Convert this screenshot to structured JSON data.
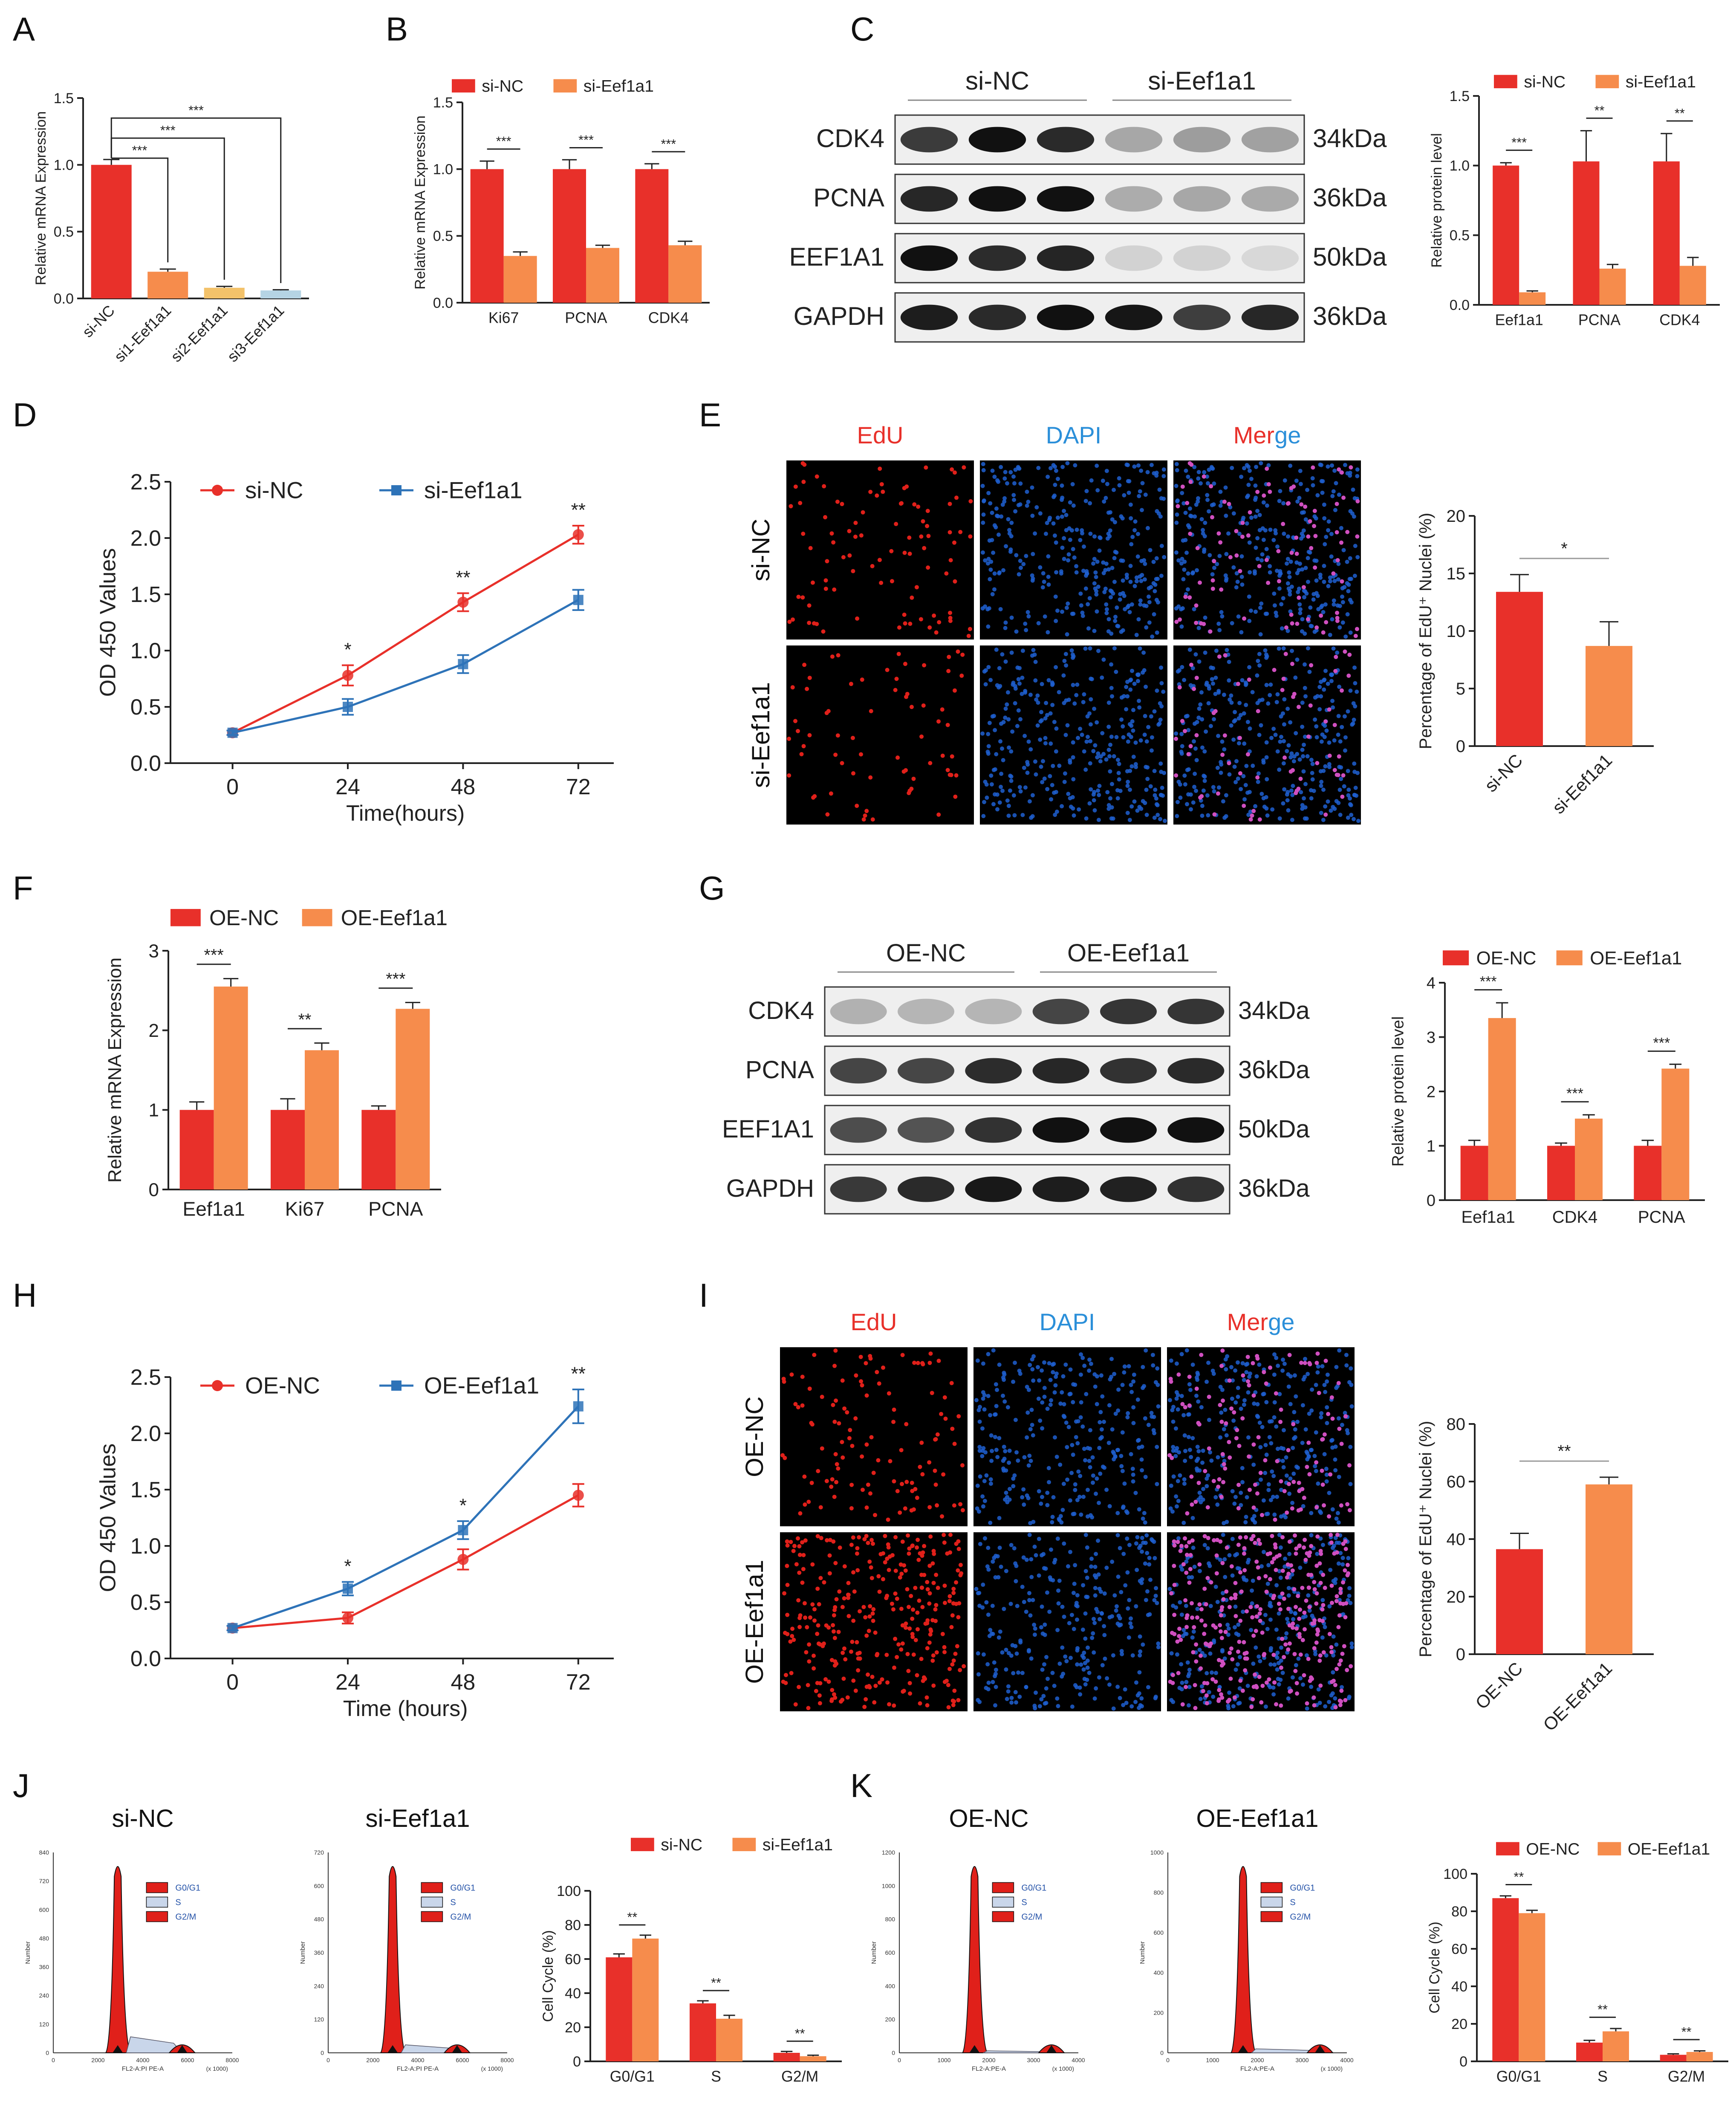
{
  "colors": {
    "red": "#e8302a",
    "orange": "#f68c4c",
    "yellow": "#f3c26a",
    "lightblue": "#b5d4e4",
    "blue": "#2e73b8",
    "edu_red": "#e8302a",
    "dapi_blue": "#2b8fd9"
  },
  "panel_letters": [
    "A",
    "B",
    "C",
    "D",
    "E",
    "F",
    "G",
    "H",
    "I",
    "J",
    "K"
  ],
  "chart_data": [
    {
      "id": "A",
      "type": "bar",
      "ylabel": "Relative mRNA Expression",
      "ylim": [
        0,
        1.5
      ],
      "yticks": [
        "0.0",
        "0.5",
        "1.0",
        "1.5"
      ],
      "categories": [
        "si-NC",
        "si1-Eef1a1",
        "si2-Eef1a1",
        "si3-Eef1a1"
      ],
      "values": [
        1.0,
        0.2,
        0.08,
        0.06
      ],
      "errors": [
        0.04,
        0.02,
        0.01,
        0.005
      ],
      "sig": [
        "***",
        "***",
        "***"
      ]
    },
    {
      "id": "B",
      "type": "bar",
      "ylabel": "Relative mRNA Expression",
      "ylim": [
        0,
        1.5
      ],
      "yticks": [
        "0.0",
        "0.5",
        "1.0",
        "1.5"
      ],
      "categories": [
        "Ki67",
        "PCNA",
        "CDK4"
      ],
      "series": [
        {
          "name": "si-NC",
          "values": [
            1.0,
            1.0,
            1.0
          ],
          "errors": [
            0.06,
            0.07,
            0.04
          ]
        },
        {
          "name": "si-Eef1a1",
          "values": [
            0.35,
            0.41,
            0.43
          ],
          "errors": [
            0.03,
            0.02,
            0.03
          ]
        }
      ],
      "sig": [
        "***",
        "***",
        "***"
      ]
    },
    {
      "id": "C",
      "type": "bar",
      "ylabel": "Relative protein level",
      "ylim": [
        0,
        1.5
      ],
      "yticks": [
        "0.0",
        "0.5",
        "1.0",
        "1.5"
      ],
      "categories": [
        "Eef1a1",
        "PCNA",
        "CDK4"
      ],
      "series": [
        {
          "name": "si-NC",
          "values": [
            1.0,
            1.03,
            1.03
          ],
          "errors": [
            0.02,
            0.22,
            0.2
          ]
        },
        {
          "name": "si-Eef1a1",
          "values": [
            0.09,
            0.26,
            0.28
          ],
          "errors": [
            0.01,
            0.03,
            0.06
          ]
        }
      ],
      "sig": [
        "***",
        "**",
        "**"
      ]
    },
    {
      "id": "D",
      "type": "line",
      "xlabel": "Time(hours)",
      "ylabel": "OD 450 Values",
      "ylim": [
        0,
        2.5
      ],
      "yticks": [
        "0.0",
        "0.5",
        "1.0",
        "1.5",
        "2.0",
        "2.5"
      ],
      "x": [
        "0",
        "24",
        "48",
        "72"
      ],
      "series": [
        {
          "name": "si-NC",
          "values": [
            0.27,
            0.78,
            1.43,
            2.03
          ],
          "errors": [
            0.02,
            0.09,
            0.08,
            0.08
          ]
        },
        {
          "name": "si-Eef1a1",
          "values": [
            0.27,
            0.5,
            0.88,
            1.45
          ],
          "errors": [
            0.02,
            0.07,
            0.08,
            0.09
          ]
        }
      ],
      "sig": [
        "",
        "*",
        "**",
        "**"
      ]
    },
    {
      "id": "E",
      "type": "bar",
      "ylabel": "Percentage of EdU⁺ Nuclei (%)",
      "ylim": [
        0,
        20
      ],
      "yticks": [
        "0",
        "5",
        "10",
        "15",
        "20"
      ],
      "categories": [
        "si-NC",
        "si-Eef1a1"
      ],
      "values": [
        13.4,
        8.7
      ],
      "errors": [
        1.5,
        2.1
      ],
      "sig": [
        "*"
      ]
    },
    {
      "id": "F",
      "type": "bar",
      "ylabel": "Relative mRNA Expression",
      "ylim": [
        0,
        3
      ],
      "yticks": [
        "0",
        "1",
        "2",
        "3"
      ],
      "categories": [
        "Eef1a1",
        "Ki67",
        "PCNA"
      ],
      "series": [
        {
          "name": "OE-NC",
          "values": [
            1.0,
            1.0,
            1.0
          ],
          "errors": [
            0.1,
            0.14,
            0.05
          ]
        },
        {
          "name": "OE-Eef1a1",
          "values": [
            2.55,
            1.75,
            2.27
          ],
          "errors": [
            0.1,
            0.09,
            0.08
          ]
        }
      ],
      "sig": [
        "***",
        "**",
        "***"
      ]
    },
    {
      "id": "G",
      "type": "bar",
      "ylabel": "Relative protein level",
      "ylim": [
        0,
        4
      ],
      "yticks": [
        "0",
        "1",
        "2",
        "3",
        "4"
      ],
      "categories": [
        "Eef1a1",
        "CDK4",
        "PCNA"
      ],
      "series": [
        {
          "name": "OE-NC",
          "values": [
            1.0,
            1.0,
            1.0
          ],
          "errors": [
            0.1,
            0.05,
            0.1
          ]
        },
        {
          "name": "OE-Eef1a1",
          "values": [
            3.35,
            1.5,
            2.42
          ],
          "errors": [
            0.28,
            0.07,
            0.08
          ]
        }
      ],
      "sig": [
        "***",
        "***",
        "***"
      ]
    },
    {
      "id": "H",
      "type": "line",
      "xlabel": "Time (hours)",
      "ylabel": "OD 450 Values",
      "ylim": [
        0,
        2.5
      ],
      "yticks": [
        "0.0",
        "0.5",
        "1.0",
        "1.5",
        "2.0",
        "2.5"
      ],
      "x": [
        "0",
        "24",
        "48",
        "72"
      ],
      "series": [
        {
          "name": "OE-NC",
          "values": [
            0.27,
            0.36,
            0.88,
            1.45
          ],
          "errors": [
            0.02,
            0.05,
            0.09,
            0.1
          ]
        },
        {
          "name": "OE-Eef1a1",
          "values": [
            0.27,
            0.62,
            1.14,
            2.24
          ],
          "errors": [
            0.02,
            0.06,
            0.08,
            0.15
          ]
        }
      ],
      "sig": [
        "",
        "*",
        "*",
        "**"
      ]
    },
    {
      "id": "I",
      "type": "bar",
      "ylabel": "Percentage of EdU⁺ Nuclei (%)",
      "ylim": [
        0,
        80
      ],
      "yticks": [
        "0",
        "20",
        "40",
        "60",
        "80"
      ],
      "categories": [
        "OE-NC",
        "OE-Eef1a1"
      ],
      "values": [
        36.5,
        59
      ],
      "errors": [
        5.5,
        2.5
      ],
      "sig": [
        "**"
      ]
    },
    {
      "id": "J",
      "type": "bar",
      "ylabel": "Cell Cycle (%)",
      "ylim": [
        0,
        100
      ],
      "yticks": [
        "0",
        "20",
        "40",
        "60",
        "80",
        "100"
      ],
      "categories": [
        "G0/G1",
        "S",
        "G2/M"
      ],
      "series": [
        {
          "name": "si-NC",
          "values": [
            61,
            34,
            5
          ],
          "errors": [
            2,
            1.5,
            0.8
          ]
        },
        {
          "name": "si-Eef1a1",
          "values": [
            72,
            25,
            3
          ],
          "errors": [
            2,
            2,
            0.6
          ]
        }
      ],
      "sig": [
        "**",
        "**",
        "**"
      ]
    },
    {
      "id": "K",
      "type": "bar",
      "ylabel": "Cell Cycle (%)",
      "ylim": [
        0,
        100
      ],
      "yticks": [
        "0",
        "20",
        "40",
        "60",
        "80",
        "100"
      ],
      "categories": [
        "G0/G1",
        "S",
        "G2/M"
      ],
      "series": [
        {
          "name": "OE-NC",
          "values": [
            87,
            10,
            3.5
          ],
          "errors": [
            1.2,
            1.2,
            0.5
          ]
        },
        {
          "name": "OE-Eef1a1",
          "values": [
            79,
            16,
            5
          ],
          "errors": [
            1.5,
            1.5,
            0.6
          ]
        }
      ],
      "sig": [
        "**",
        "**",
        "**"
      ]
    }
  ],
  "blots": {
    "C": {
      "groups": [
        "si-NC",
        "si-Eef1a1"
      ],
      "rows": [
        {
          "protein": "CDK4",
          "size": "34kDa"
        },
        {
          "protein": "PCNA",
          "size": "36kDa"
        },
        {
          "protein": "EEF1A1",
          "size": "50kDa"
        },
        {
          "protein": "GAPDH",
          "size": "36kDa"
        }
      ]
    },
    "G": {
      "groups": [
        "OE-NC",
        "OE-Eef1a1"
      ],
      "rows": [
        {
          "protein": "CDK4",
          "size": "34kDa"
        },
        {
          "protein": "PCNA",
          "size": "36kDa"
        },
        {
          "protein": "EEF1A1",
          "size": "50kDa"
        },
        {
          "protein": "GAPDH",
          "size": "36kDa"
        }
      ]
    }
  },
  "microscopy": {
    "E": {
      "channels": [
        "EdU",
        "DAPI",
        "Mer",
        "ge"
      ],
      "rows": [
        "si-NC",
        "si-Eef1a1"
      ]
    },
    "I": {
      "channels": [
        "EdU",
        "DAPI",
        "Mer",
        "ge"
      ],
      "rows": [
        "OE-NC",
        "OE-Eef1a1"
      ]
    }
  },
  "flow": {
    "J": {
      "plots": [
        {
          "title": "si-NC",
          "ylabel": "Number",
          "xlabel": "FL2-A:PI PE-A",
          "scale": "(x 1000)",
          "xticks": [
            "0",
            "2000",
            "4000",
            "6000",
            "8000"
          ],
          "yticks": [
            "0",
            "120",
            "240",
            "360",
            "480",
            "600",
            "720",
            "840"
          ]
        },
        {
          "title": "si-Eef1a1",
          "ylabel": "Number",
          "xlabel": "FL2-A:PI PE-A",
          "scale": "(x 1000)",
          "xticks": [
            "0",
            "2000",
            "4000",
            "6000",
            "8000"
          ],
          "yticks": [
            "0",
            "120",
            "240",
            "360",
            "480",
            "600",
            "720"
          ]
        }
      ],
      "legend": [
        "G0/G1",
        "S",
        "G2/M"
      ]
    },
    "K": {
      "plots": [
        {
          "title": "OE-NC",
          "ylabel": "Number",
          "xlabel": "FL2-A:PE-A",
          "scale": "(x 1000)",
          "xticks": [
            "0",
            "1000",
            "2000",
            "3000",
            "4000"
          ],
          "yticks": [
            "0",
            "200",
            "400",
            "600",
            "800",
            "1000",
            "1200"
          ]
        },
        {
          "title": "OE-Eef1a1",
          "ylabel": "Number",
          "xlabel": "FL2-A:PE-A",
          "scale": "(x 1000)",
          "xticks": [
            "0",
            "1000",
            "2000",
            "3000",
            "4000"
          ],
          "yticks": [
            "0",
            "200",
            "400",
            "600",
            "800",
            "1000"
          ]
        }
      ],
      "legend": [
        "G0/G1",
        "S",
        "G2/M"
      ]
    }
  }
}
